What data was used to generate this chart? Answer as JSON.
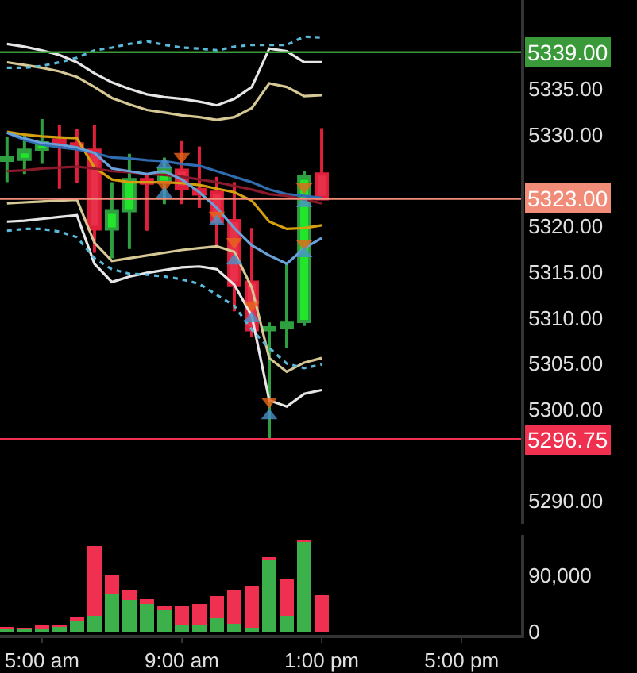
{
  "chart_data": [
    {
      "type": "candlestick",
      "x": [
        4,
        4.5,
        5,
        5.5,
        6,
        6.5,
        7,
        7.5,
        8,
        8.5,
        9,
        9.5,
        10,
        10.5,
        11,
        11.5,
        12,
        12.5,
        13
      ],
      "ohlc": [
        [
          5327.2,
          5329.7,
          5324.8,
          5327.5
        ],
        [
          5327.3,
          5330.0,
          5325.7,
          5328.3
        ],
        [
          5328.4,
          5331.7,
          5326.8,
          5329.1
        ],
        [
          5329.4,
          5331.0,
          5324.1,
          5328.9
        ],
        [
          5329.0,
          5330.6,
          5324.7,
          5328.6
        ],
        [
          5328.3,
          5331.1,
          5317.1,
          5319.7
        ],
        [
          5319.7,
          5324.8,
          5316.5,
          5321.7
        ],
        [
          5321.7,
          5327.9,
          5317.5,
          5325.1
        ],
        [
          5325.1,
          5325.7,
          5319.5,
          5324.7
        ],
        [
          5324.8,
          5327.5,
          5322.4,
          5326.3
        ],
        [
          5326.1,
          5329.3,
          5322.4,
          5324.1
        ],
        [
          5324.0,
          5328.7,
          5322.0,
          5323.5
        ],
        [
          5323.7,
          5325.4,
          5317.6,
          5320.5
        ],
        [
          5320.6,
          5324.8,
          5310.7,
          5313.6
        ],
        [
          5313.9,
          5319.8,
          5307.9,
          5308.7
        ],
        [
          5308.7,
          5309.5,
          5296.75,
          5308.9
        ],
        [
          5308.9,
          5315.9,
          5306.7,
          5309.4
        ],
        [
          5309.6,
          5326.0,
          5309.1,
          5325.4
        ],
        [
          5325.7,
          5330.7,
          5323.0,
          5323.0
        ]
      ],
      "series": [
        {
          "type": "line",
          "color": "#e6e6e6",
          "line_style": "solid",
          "values": [
            5339.9,
            5339.6,
            5339.2,
            5338.7,
            5337.9,
            5336.7,
            5335.7,
            5335.0,
            5334.4,
            5334.1,
            5333.9,
            5333.6,
            5333.2,
            5333.9,
            5335.2,
            5339.4,
            5339.1,
            5337.9,
            5337.9
          ]
        },
        {
          "type": "line",
          "color": "#d6c894",
          "line_style": "solid",
          "values": [
            5337.9,
            5337.6,
            5337.3,
            5336.9,
            5336.3,
            5335.2,
            5334.0,
            5333.3,
            5332.7,
            5332.4,
            5332.1,
            5331.9,
            5331.6,
            5331.9,
            5332.9,
            5335.6,
            5335.2,
            5334.2,
            5334.3
          ]
        },
        {
          "type": "line",
          "color": "#5ab8d8",
          "line_style": "dotted",
          "values": [
            5337.3,
            5337.3,
            5337.5,
            5337.9,
            5338.4,
            5339.2,
            5339.5,
            5339.9,
            5340.2,
            5339.8,
            5339.5,
            5339.4,
            5339.2,
            5339.6,
            5339.8,
            5339.8,
            5339.8,
            5340.7,
            5340.6
          ]
        },
        {
          "type": "line",
          "color": "#d4a010",
          "line_style": "solid",
          "values": [
            5330.3,
            5330.0,
            5329.8,
            5329.7,
            5329.6,
            5326.4,
            5325.1,
            5324.8,
            5324.8,
            5324.8,
            5324.7,
            5324.5,
            5324.1,
            5323.7,
            5322.8,
            5320.5,
            5319.7,
            5319.8,
            5320.1
          ]
        },
        {
          "type": "line",
          "color": "#2f6db0",
          "line_style": "solid",
          "values": [
            5330.2,
            5329.4,
            5328.9,
            5328.6,
            5328.4,
            5328.0,
            5327.5,
            5327.4,
            5327.2,
            5327.1,
            5326.8,
            5326.6,
            5326.0,
            5325.4,
            5324.8,
            5324.0,
            5323.5,
            5323.3,
            5323.1
          ]
        },
        {
          "type": "line",
          "color": "#8a1a2a",
          "line_style": "solid",
          "values": [
            5326.0,
            5326.1,
            5326.3,
            5326.4,
            5326.5,
            5326.3,
            5326.0,
            5325.9,
            5325.7,
            5325.6,
            5325.4,
            5325.1,
            5324.8,
            5324.4,
            5324.0,
            5323.5,
            5323.3,
            5322.9,
            5322.5
          ]
        },
        {
          "type": "line",
          "color": "#6aa0d8",
          "line_style": "solid",
          "values": [
            5330.2,
            5329.6,
            5329.1,
            5328.9,
            5328.6,
            5328.0,
            5326.3,
            5326.0,
            5325.7,
            5326.0,
            5325.1,
            5323.7,
            5322.0,
            5319.8,
            5317.9,
            5316.8,
            5315.9,
            5317.6,
            5318.7
          ]
        },
        {
          "type": "line",
          "color": "#d6c894",
          "line_style": "solid",
          "values": [
            5322.5,
            5322.6,
            5322.7,
            5322.8,
            5322.9,
            5318.2,
            5316.2,
            5316.5,
            5316.8,
            5317.1,
            5317.4,
            5317.6,
            5317.8,
            5317.2,
            5313.3,
            5305.6,
            5304.1,
            5305.1,
            5305.6
          ]
        },
        {
          "type": "line",
          "color": "#e6e6e6",
          "line_style": "solid",
          "values": [
            5320.5,
            5320.6,
            5320.8,
            5321.0,
            5321.2,
            5315.9,
            5313.9,
            5314.5,
            5314.9,
            5315.2,
            5315.5,
            5315.6,
            5315.3,
            5313.6,
            5310.2,
            5301.0,
            5300.3,
            5301.7,
            5302.1
          ]
        },
        {
          "type": "line",
          "color": "#5ab8d8",
          "line_style": "dotted",
          "values": [
            5319.5,
            5319.7,
            5319.7,
            5319.4,
            5318.8,
            5316.5,
            5315.3,
            5314.8,
            5314.7,
            5314.5,
            5314.2,
            5313.7,
            5312.5,
            5311.3,
            5308.7,
            5306.7,
            5305.0,
            5304.5,
            5304.9
          ]
        },
        {
          "type": "scatter",
          "marker": "triangle-down",
          "color": "#e8651a",
          "x": [
            8.5,
            9,
            10,
            10.5,
            11,
            11.5,
            12.5,
            12.5
          ],
          "values": [
            5324.5,
            5327.6,
            5321.2,
            5318.3,
            5311.4,
            5300.9,
            5324.3,
            5318.1
          ]
        },
        {
          "type": "scatter",
          "marker": "triangle",
          "color": "#4a90c8",
          "x": [
            8.5,
            8.5,
            10,
            10.5,
            11,
            11.5,
            12.5,
            12.5
          ],
          "values": [
            5326.7,
            5323.5,
            5320.5,
            5316.2,
            5309.9,
            5299.3,
            5322.5,
            5317.0
          ]
        }
      ],
      "xlim": [
        3.8,
        18.7
      ],
      "ylim": [
        5287.5,
        5344.7
      ],
      "yticks": [
        {
          "value": 5290,
          "label": "5290.00"
        },
        {
          "value": 5300,
          "label": "5300.00"
        },
        {
          "value": 5305,
          "label": "5305.00"
        },
        {
          "value": 5310,
          "label": "5310.00"
        },
        {
          "value": 5315,
          "label": "5315.00"
        },
        {
          "value": 5320,
          "label": "5320.00"
        },
        {
          "value": 5330,
          "label": "5330.00"
        },
        {
          "value": 5335,
          "label": "5335.00"
        }
      ],
      "ref_lines": [
        {
          "axis": "y",
          "value": 5339,
          "label": "5339.00",
          "color": "#3a9a3a"
        },
        {
          "axis": "y",
          "value": 5323,
          "label": "5323.00",
          "color": "#f08c78"
        },
        {
          "axis": "y",
          "value": 5296.75,
          "label": "5296.75",
          "color": "#f0304f"
        }
      ],
      "tick_labels": "y",
      "grid": false
    },
    {
      "type": "bar",
      "stacked": true,
      "x": [
        4,
        4.5,
        5,
        5.5,
        6,
        6.5,
        7,
        7.5,
        8,
        8.5,
        9,
        9.5,
        10,
        10.5,
        11,
        11.5,
        12,
        12.5,
        13
      ],
      "series": [
        {
          "color": "#3cb04a",
          "values": [
            4000,
            4000,
            5000,
            8000,
            16000,
            25000,
            60000,
            51000,
            44000,
            35000,
            11000,
            10000,
            22000,
            13000,
            6000,
            115000,
            25000,
            143000,
            0
          ]
        },
        {
          "color": "#f03050",
          "values": [
            4000,
            3000,
            6000,
            4000,
            7000,
            112000,
            31000,
            17000,
            8000,
            7000,
            31000,
            34000,
            35000,
            53000,
            67000,
            4000,
            59000,
            4000,
            58000
          ]
        }
      ],
      "xlim": [
        3.8,
        18.7
      ],
      "xticks": [
        {
          "value": 5,
          "label": "5:00 am"
        },
        {
          "value": 9,
          "label": "9:00 am"
        },
        {
          "value": 13,
          "label": "1:00 pm"
        },
        {
          "value": 17,
          "label": "5:00 pm"
        }
      ],
      "ylim": [
        -5000,
        155000
      ],
      "yticks": [
        0,
        {
          "value": 90000,
          "label": "90,000"
        }
      ],
      "grid": false
    }
  ]
}
